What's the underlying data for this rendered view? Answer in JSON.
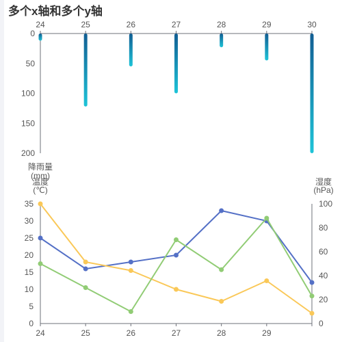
{
  "title": "多个x轴和多个y轴",
  "colors": {
    "rain_top": "#125e93",
    "rain_bottom": "#1ec4d8",
    "series_blue": "#5470c6",
    "series_yellow": "#fac858",
    "series_green": "#91cc75",
    "axis": "#6e7079"
  },
  "chart_data": [
    {
      "type": "bar",
      "x": [
        "24",
        "25",
        "26",
        "27",
        "28",
        "29",
        "30"
      ],
      "x_position": "top",
      "ylabel": "降雨量(mm)",
      "y_inverse": true,
      "ylim": [
        0,
        200
      ],
      "yticks": [
        0,
        50,
        100,
        150,
        200
      ],
      "series": [
        {
          "values": [
            12,
            122,
            55,
            100,
            23,
            45,
            200
          ]
        }
      ]
    },
    {
      "type": "line",
      "x": [
        "24",
        "25",
        "26",
        "27",
        "28",
        "29",
        "30"
      ],
      "x_position": "bottom",
      "y_left": {
        "label": "温度(℃)",
        "ylim": [
          0,
          35
        ],
        "yticks": [
          0,
          5,
          10,
          15,
          20,
          25,
          30,
          35
        ]
      },
      "y_right": {
        "label": "湿度(hPa)",
        "ylim": [
          0,
          100
        ],
        "yticks": [
          0,
          20,
          40,
          60,
          80,
          100
        ]
      },
      "series": [
        {
          "axis": "left",
          "color": "#5470c6",
          "values": [
            25,
            16,
            18,
            20,
            33,
            30,
            12
          ]
        },
        {
          "axis": "left",
          "color": "#fac858",
          "values": [
            35,
            18,
            15.5,
            10,
            6.5,
            12.5,
            3
          ]
        },
        {
          "axis": "right",
          "color": "#91cc75",
          "values": [
            50,
            30,
            10,
            70,
            45,
            88,
            23
          ]
        }
      ]
    }
  ]
}
